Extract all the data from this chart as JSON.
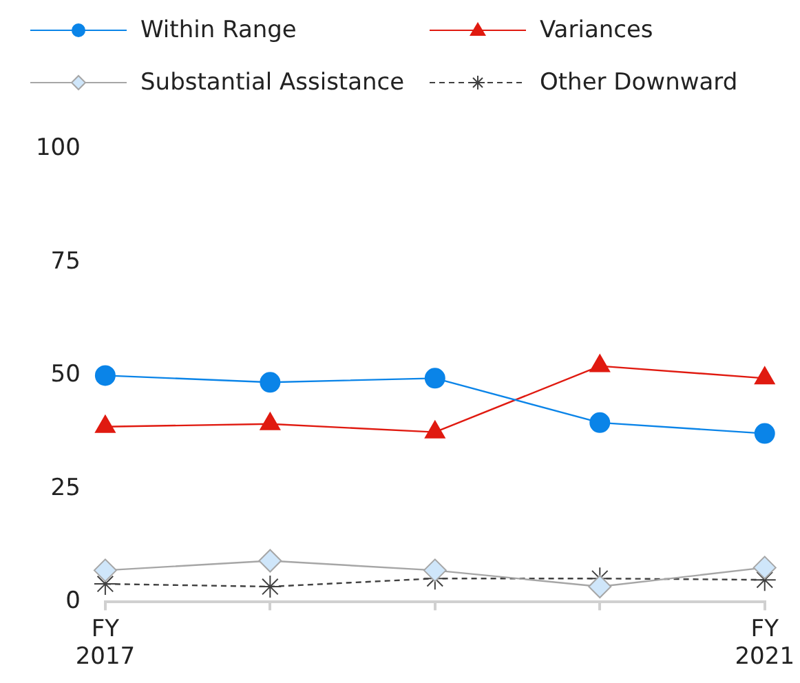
{
  "chart_data": {
    "type": "line",
    "categories": [
      "FY 2017",
      null,
      null,
      null,
      "FY 2021"
    ],
    "ylim": [
      0,
      100
    ],
    "yticks": [
      0,
      25,
      50,
      75,
      100
    ],
    "grid": false,
    "legend": "top",
    "series": [
      {
        "name": "Within Range",
        "color": "#0a84e8",
        "marker": "circle",
        "line_style": "solid",
        "values": [
          50,
          48.5,
          49.4,
          39.6,
          37.2
        ]
      },
      {
        "name": "Variances",
        "color": "#e01a10",
        "marker": "triangle",
        "line_style": "solid",
        "values": [
          38.7,
          39.3,
          37.5,
          52.1,
          49.4
        ]
      },
      {
        "name": "Substantial Assistance",
        "color": "#a6a6a6",
        "marker": "diamond",
        "line_style": "solid",
        "values": [
          7,
          9.1,
          7,
          3.4,
          7.6
        ]
      },
      {
        "name": "Other Downward",
        "color": "#404040",
        "marker": "cross",
        "line_style": "dashed",
        "values": [
          4,
          3.4,
          5.2,
          5.2,
          4.9
        ]
      }
    ]
  }
}
